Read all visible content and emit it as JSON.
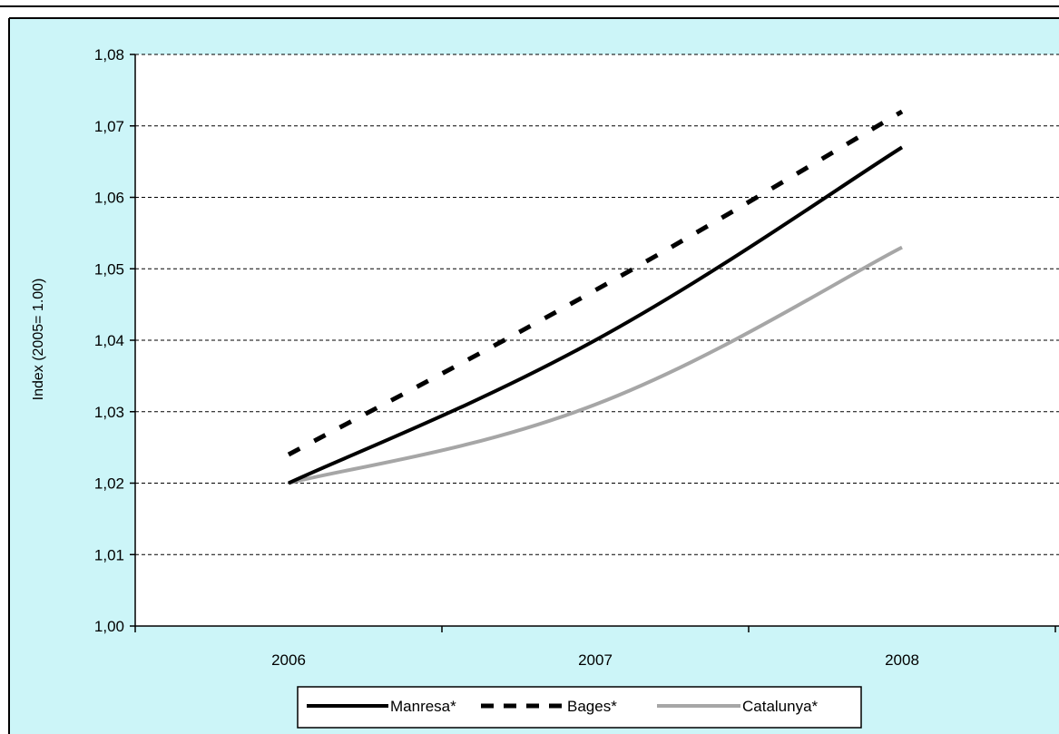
{
  "chart_data": {
    "type": "line",
    "title": "",
    "xlabel": "",
    "ylabel": "Index (2005= 1.00)",
    "categories": [
      "2006",
      "2007",
      "2008"
    ],
    "ylim": [
      1.0,
      1.08
    ],
    "yticks": [
      "1,00",
      "1,01",
      "1,02",
      "1,03",
      "1,04",
      "1,05",
      "1,06",
      "1,07",
      "1,08"
    ],
    "grid": true,
    "legend_position": "bottom",
    "series": [
      {
        "name": "Manresa*",
        "values": [
          1.02,
          1.04,
          1.067
        ],
        "color": "#000000",
        "style": "solid"
      },
      {
        "name": "Bages*",
        "values": [
          1.024,
          1.047,
          1.072
        ],
        "color": "#000000",
        "style": "dashed"
      },
      {
        "name": "Catalunya*",
        "values": [
          1.02,
          1.031,
          1.053
        ],
        "color": "#a6a6a6",
        "style": "solid"
      }
    ]
  },
  "colors": {
    "plot_background": "#ccf5f8",
    "plot_area": "#ffffff",
    "grid": "#000000"
  }
}
